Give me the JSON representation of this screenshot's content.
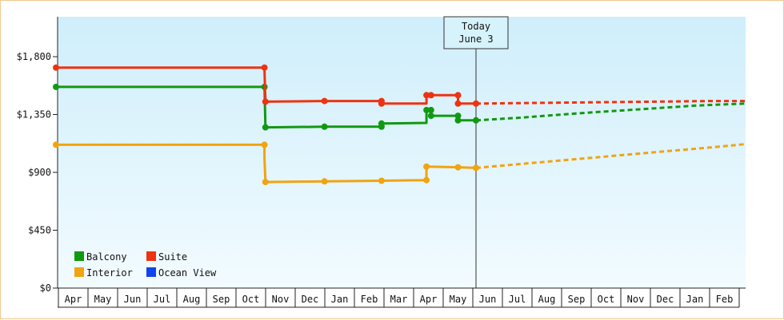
{
  "chart_data": {
    "type": "line",
    "title": "",
    "xlabel": "",
    "ylabel": "",
    "ylim": [
      0,
      2100
    ],
    "y_ticks": [
      {
        "value": 0,
        "label": "$0"
      },
      {
        "value": 450,
        "label": "$450"
      },
      {
        "value": 900,
        "label": "$900"
      },
      {
        "value": 1350,
        "label": "$1,350"
      },
      {
        "value": 1800,
        "label": "$1,800"
      }
    ],
    "x_months": [
      "Apr",
      "May",
      "Jun",
      "Jul",
      "Aug",
      "Sep",
      "Oct",
      "Nov",
      "Dec",
      "Jan",
      "Feb",
      "Mar",
      "Apr",
      "May",
      "Jun",
      "Jul",
      "Aug",
      "Sep",
      "Oct",
      "Nov",
      "Dec",
      "Jan",
      "Feb"
    ],
    "today": {
      "line1": "Today",
      "line2": "June 3",
      "x": 14.0
    },
    "grid": false,
    "legend_placement": "bottom-left",
    "series": [
      {
        "name": "Balcony",
        "color": "#119911",
        "points": [
          [
            0.0,
            1565
          ],
          [
            6.95,
            1565
          ],
          [
            6.95,
            1570
          ],
          [
            6.98,
            1250
          ],
          [
            8.95,
            1255
          ],
          [
            10.85,
            1255
          ],
          [
            10.85,
            1280
          ],
          [
            12.35,
            1285
          ],
          [
            12.35,
            1385
          ],
          [
            12.5,
            1385
          ],
          [
            12.5,
            1340
          ],
          [
            13.4,
            1340
          ],
          [
            13.4,
            1305
          ],
          [
            14.0,
            1305
          ]
        ],
        "forecast": [
          [
            14.0,
            1305
          ],
          [
            15.5,
            1325
          ],
          [
            17.5,
            1360
          ],
          [
            19.5,
            1390
          ],
          [
            21.5,
            1420
          ],
          [
            23.15,
            1435
          ]
        ]
      },
      {
        "name": "Suite",
        "color": "#ee3311",
        "points": [
          [
            0.0,
            1715
          ],
          [
            6.95,
            1715
          ],
          [
            6.95,
            1700
          ],
          [
            6.98,
            1450
          ],
          [
            8.95,
            1455
          ],
          [
            10.85,
            1455
          ],
          [
            10.85,
            1435
          ],
          [
            12.35,
            1435
          ],
          [
            12.35,
            1500
          ],
          [
            12.5,
            1500
          ],
          [
            13.4,
            1500
          ],
          [
            13.4,
            1435
          ],
          [
            14.0,
            1435
          ]
        ],
        "forecast": [
          [
            14.0,
            1435
          ],
          [
            16.0,
            1440
          ],
          [
            18.0,
            1445
          ],
          [
            20.0,
            1450
          ],
          [
            22.0,
            1455
          ],
          [
            23.15,
            1455
          ]
        ]
      },
      {
        "name": "Interior",
        "color": "#f0a411",
        "points": [
          [
            0.0,
            1115
          ],
          [
            6.95,
            1115
          ],
          [
            6.95,
            1010
          ],
          [
            6.98,
            825
          ],
          [
            8.95,
            830
          ],
          [
            10.85,
            835
          ],
          [
            12.35,
            840
          ],
          [
            12.35,
            945
          ],
          [
            13.4,
            940
          ],
          [
            14.0,
            935
          ]
        ],
        "forecast": [
          [
            14.0,
            935
          ],
          [
            16.0,
            975
          ],
          [
            18.0,
            1015
          ],
          [
            20.0,
            1055
          ],
          [
            22.0,
            1095
          ],
          [
            23.15,
            1120
          ]
        ]
      },
      {
        "name": "Ocean View",
        "color": "#1144ee",
        "points": [],
        "forecast": []
      }
    ],
    "markers": {
      "Balcony": [
        [
          0.0,
          1565
        ],
        [
          6.95,
          1565
        ],
        [
          6.98,
          1250
        ],
        [
          8.95,
          1255
        ],
        [
          10.85,
          1255
        ],
        [
          10.85,
          1280
        ],
        [
          12.35,
          1385
        ],
        [
          12.5,
          1385
        ],
        [
          12.5,
          1340
        ],
        [
          13.4,
          1340
        ],
        [
          13.4,
          1305
        ],
        [
          14.0,
          1305
        ]
      ],
      "Suite": [
        [
          0.0,
          1715
        ],
        [
          6.95,
          1715
        ],
        [
          6.98,
          1450
        ],
        [
          8.95,
          1455
        ],
        [
          10.85,
          1455
        ],
        [
          10.85,
          1435
        ],
        [
          12.35,
          1500
        ],
        [
          12.5,
          1500
        ],
        [
          13.4,
          1500
        ],
        [
          13.4,
          1435
        ],
        [
          14.0,
          1435
        ]
      ],
      "Interior": [
        [
          0.0,
          1115
        ],
        [
          6.95,
          1115
        ],
        [
          6.98,
          825
        ],
        [
          8.95,
          830
        ],
        [
          10.85,
          835
        ],
        [
          12.35,
          840
        ],
        [
          12.35,
          945
        ],
        [
          13.4,
          940
        ],
        [
          14.0,
          935
        ]
      ]
    }
  }
}
